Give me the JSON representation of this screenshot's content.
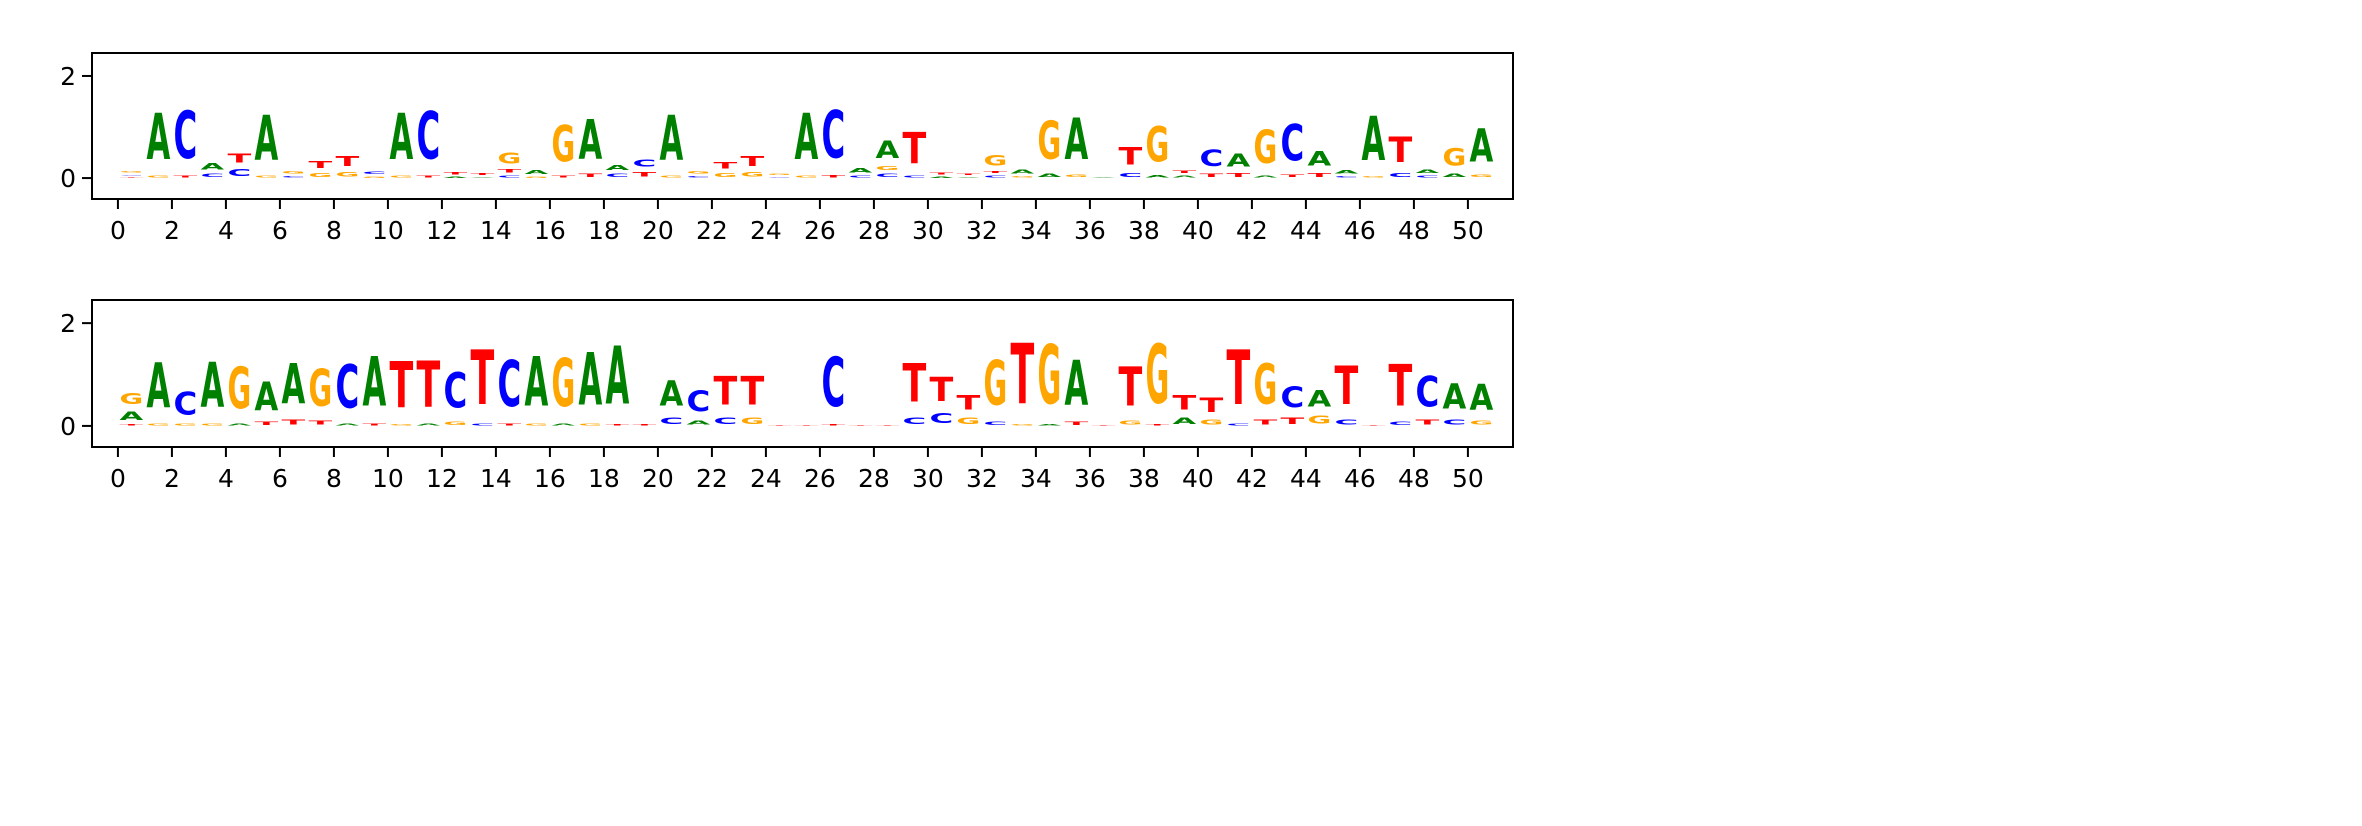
{
  "chart_data": [
    {
      "type": "sequence-logo",
      "title": "",
      "xlabel": "",
      "ylabel": "",
      "xlim": [
        -0.96,
        51.67
      ],
      "ylim": [
        -0.41,
        2.45
      ],
      "xticks": [
        0,
        2,
        4,
        6,
        8,
        10,
        12,
        14,
        16,
        18,
        20,
        22,
        24,
        26,
        28,
        30,
        32,
        34,
        36,
        38,
        40,
        42,
        44,
        46,
        48,
        50
      ],
      "xtick_labels": [
        "0",
        "2",
        "4",
        "6",
        "8",
        "10",
        "12",
        "14",
        "16",
        "18",
        "20",
        "22",
        "24",
        "26",
        "28",
        "30",
        "32",
        "34",
        "36",
        "38",
        "40",
        "42",
        "44",
        "46",
        "48",
        "50"
      ],
      "yticks": [
        0,
        2
      ],
      "ytick_labels": [
        "0",
        "2"
      ],
      "positions": [
        [
          [
            "T",
            0.01
          ],
          [
            "C",
            0.02
          ],
          [
            "G",
            0.04
          ]
        ],
        [
          [
            "G",
            0.05
          ],
          [
            "A",
            1.45
          ]
        ],
        [
          [
            "T",
            0.06
          ],
          [
            "C",
            1.5
          ]
        ],
        [
          [
            "C",
            0.1
          ],
          [
            "A",
            0.2
          ]
        ],
        [
          [
            "C",
            0.22
          ],
          [
            "T",
            0.28
          ]
        ],
        [
          [
            "G",
            0.05
          ],
          [
            "A",
            1.4
          ]
        ],
        [
          [
            "C",
            0.04
          ],
          [
            "G",
            0.08
          ]
        ],
        [
          [
            "G",
            0.12
          ],
          [
            "T",
            0.22
          ]
        ],
        [
          [
            "G",
            0.15
          ],
          [
            "T",
            0.3
          ]
        ],
        [
          [
            "G",
            0.03
          ],
          [
            "C",
            0.08
          ]
        ],
        [
          [
            "G",
            0.05
          ],
          [
            "A",
            1.45
          ]
        ],
        [
          [
            "T",
            0.05
          ],
          [
            "C",
            1.5
          ]
        ],
        [
          [
            "A",
            0.03
          ],
          [
            "T",
            0.07
          ]
        ],
        [
          [
            "A",
            0.02
          ],
          [
            "T",
            0.06
          ]
        ],
        [
          [
            "C",
            0.06
          ],
          [
            "T",
            0.1
          ],
          [
            "G",
            0.34
          ]
        ],
        [
          [
            "G",
            0.03
          ],
          [
            "A",
            0.12
          ]
        ],
        [
          [
            "T",
            0.06
          ],
          [
            "G",
            1.15
          ]
        ],
        [
          [
            "T",
            0.1
          ],
          [
            "A",
            1.25
          ]
        ],
        [
          [
            "C",
            0.1
          ],
          [
            "A",
            0.16
          ]
        ],
        [
          [
            "T",
            0.15
          ],
          [
            "C",
            0.22
          ]
        ],
        [
          [
            "G",
            0.05
          ],
          [
            "A",
            1.4
          ]
        ],
        [
          [
            "C",
            0.04
          ],
          [
            "G",
            0.08
          ]
        ],
        [
          [
            "G",
            0.12
          ],
          [
            "T",
            0.2
          ]
        ],
        [
          [
            "G",
            0.15
          ],
          [
            "T",
            0.3
          ]
        ],
        [
          [
            "C",
            0.02
          ],
          [
            "G",
            0.04
          ]
        ],
        [
          [
            "G",
            0.05
          ],
          [
            "A",
            1.45
          ]
        ],
        [
          [
            "T",
            0.07
          ],
          [
            "C",
            1.5
          ]
        ],
        [
          [
            "C",
            0.05
          ],
          [
            "A",
            0.15
          ]
        ],
        [
          [
            "C",
            0.1
          ],
          [
            "G",
            0.12
          ],
          [
            "A",
            0.55
          ]
        ],
        [
          [
            "C",
            0.06
          ],
          [
            "T",
            0.98
          ]
        ],
        [
          [
            "A",
            0.03
          ],
          [
            "T",
            0.06
          ]
        ],
        [
          [
            "A",
            0.02
          ],
          [
            "T",
            0.04
          ]
        ],
        [
          [
            "C",
            0.06
          ],
          [
            "T",
            0.06
          ],
          [
            "G",
            0.32
          ]
        ],
        [
          [
            "G",
            0.04
          ],
          [
            "A",
            0.12
          ]
        ],
        [
          [
            "A",
            0.1
          ],
          [
            "G",
            1.2
          ]
        ],
        [
          [
            "G",
            0.08
          ],
          [
            "A",
            1.3
          ]
        ],
        [
          [
            "A",
            0.02
          ]
        ],
        [
          [
            "C",
            0.12
          ],
          [
            "T",
            0.55
          ]
        ],
        [
          [
            "A",
            0.07
          ],
          [
            "G",
            1.1
          ]
        ],
        [
          [
            "A",
            0.05
          ],
          [
            "T",
            0.08
          ]
        ],
        [
          [
            "T",
            0.1
          ],
          [
            "C",
            0.5
          ]
        ],
        [
          [
            "T",
            0.12
          ],
          [
            "A",
            0.4
          ]
        ],
        [
          [
            "A",
            0.05
          ],
          [
            "G",
            1.05
          ]
        ],
        [
          [
            "T",
            0.08
          ],
          [
            "C",
            1.15
          ]
        ],
        [
          [
            "T",
            0.12
          ],
          [
            "A",
            0.45
          ]
        ],
        [
          [
            "C",
            0.04
          ],
          [
            "A",
            0.1
          ]
        ],
        [
          [
            "G",
            0.04
          ],
          [
            "A",
            1.38
          ]
        ],
        [
          [
            "C",
            0.12
          ],
          [
            "T",
            0.8
          ]
        ],
        [
          [
            "C",
            0.05
          ],
          [
            "A",
            0.1
          ]
        ],
        [
          [
            "A",
            0.1
          ],
          [
            "G",
            0.55
          ]
        ],
        [
          [
            "G",
            0.08
          ],
          [
            "A",
            1.05
          ]
        ]
      ]
    },
    {
      "type": "sequence-logo",
      "title": "",
      "xlabel": "",
      "ylabel": "",
      "xlim": [
        -0.96,
        51.67
      ],
      "ylim": [
        -0.41,
        2.45
      ],
      "xticks": [
        0,
        2,
        4,
        6,
        8,
        10,
        12,
        14,
        16,
        18,
        20,
        22,
        24,
        26,
        28,
        30,
        32,
        34,
        36,
        38,
        40,
        42,
        44,
        46,
        48,
        50
      ],
      "xtick_labels": [
        "0",
        "2",
        "4",
        "6",
        "8",
        "10",
        "12",
        "14",
        "16",
        "18",
        "20",
        "22",
        "24",
        "26",
        "28",
        "30",
        "32",
        "34",
        "36",
        "38",
        "40",
        "42",
        "44",
        "46",
        "48",
        "50"
      ],
      "yticks": [
        0,
        2
      ],
      "ytick_labels": [
        "0",
        "2"
      ],
      "positions": [
        [
          [
            "T",
            0.03
          ],
          [
            "A",
            0.27
          ],
          [
            "G",
            0.35
          ]
        ],
        [
          [
            "G",
            0.05
          ],
          [
            "A",
            1.4
          ]
        ],
        [
          [
            "G",
            0.05
          ],
          [
            "C",
            0.7
          ]
        ],
        [
          [
            "G",
            0.06
          ],
          [
            "A",
            1.4
          ]
        ],
        [
          [
            "A",
            0.05
          ],
          [
            "G",
            1.3
          ]
        ],
        [
          [
            "T",
            0.1
          ],
          [
            "A",
            0.9
          ]
        ],
        [
          [
            "T",
            0.15
          ],
          [
            "A",
            1.25
          ]
        ],
        [
          [
            "T",
            0.12
          ],
          [
            "G",
            1.15
          ]
        ],
        [
          [
            "A",
            0.05
          ],
          [
            "C",
            1.35
          ]
        ],
        [
          [
            "T",
            0.05
          ],
          [
            "A",
            1.55
          ]
        ],
        [
          [
            "G",
            0.04
          ],
          [
            "T",
            1.45
          ]
        ],
        [
          [
            "A",
            0.05
          ],
          [
            "T",
            1.45
          ]
        ],
        [
          [
            "G",
            0.1
          ],
          [
            "C",
            1.1
          ]
        ],
        [
          [
            "C",
            0.05
          ],
          [
            "T",
            1.7
          ]
        ],
        [
          [
            "T",
            0.06
          ],
          [
            "C",
            1.45
          ]
        ],
        [
          [
            "G",
            0.05
          ],
          [
            "A",
            1.55
          ]
        ],
        [
          [
            "A",
            0.05
          ],
          [
            "G",
            1.5
          ]
        ],
        [
          [
            "G",
            0.05
          ],
          [
            "A",
            1.65
          ]
        ],
        [
          [
            "T",
            0.04
          ],
          [
            "A",
            1.8
          ]
        ],
        [
          [
            "T",
            0.03
          ]
        ],
        [
          [
            "C",
            0.2
          ],
          [
            "A",
            0.8
          ]
        ],
        [
          [
            "A",
            0.12
          ],
          [
            "C",
            0.65
          ]
        ],
        [
          [
            "C",
            0.2
          ],
          [
            "T",
            0.9
          ]
        ],
        [
          [
            "G",
            0.2
          ],
          [
            "T",
            0.9
          ]
        ],
        [
          [
            "T",
            0.02
          ]
        ],
        [
          [
            "T",
            0.02
          ]
        ],
        [
          [
            "T",
            0.04
          ],
          [
            "C",
            1.55
          ]
        ],
        [
          [
            "T",
            0.02
          ]
        ],
        [
          [
            "T",
            0.02
          ]
        ],
        [
          [
            "C",
            0.2
          ],
          [
            "T",
            1.2
          ]
        ],
        [
          [
            "C",
            0.3
          ],
          [
            "T",
            0.75
          ]
        ],
        [
          [
            "G",
            0.2
          ],
          [
            "T",
            0.45
          ]
        ],
        [
          [
            "C",
            0.1
          ],
          [
            "G",
            1.4
          ]
        ],
        [
          [
            "G",
            0.03
          ],
          [
            "T",
            1.88
          ]
        ],
        [
          [
            "A",
            0.03
          ],
          [
            "G",
            1.85
          ]
        ],
        [
          [
            "T",
            0.1
          ],
          [
            "A",
            1.4
          ]
        ],
        [
          [
            "T",
            0.02
          ]
        ],
        [
          [
            "G",
            0.12
          ],
          [
            "T",
            1.22
          ]
        ],
        [
          [
            "T",
            0.04
          ],
          [
            "G",
            1.85
          ]
        ],
        [
          [
            "A",
            0.2
          ],
          [
            "T",
            0.45
          ]
        ],
        [
          [
            "G",
            0.15
          ],
          [
            "T",
            0.45
          ]
        ],
        [
          [
            "C",
            0.05
          ],
          [
            "T",
            1.7
          ]
        ],
        [
          [
            "T",
            0.15
          ],
          [
            "G",
            1.25
          ]
        ],
        [
          [
            "T",
            0.2
          ],
          [
            "C",
            0.65
          ]
        ],
        [
          [
            "G",
            0.25
          ],
          [
            "A",
            0.5
          ]
        ],
        [
          [
            "C",
            0.15
          ],
          [
            "T",
            1.2
          ]
        ],
        [
          [
            "T",
            0.02
          ]
        ],
        [
          [
            "C",
            0.1
          ],
          [
            "T",
            1.3
          ]
        ],
        [
          [
            "T",
            0.15
          ],
          [
            "C",
            0.95
          ]
        ],
        [
          [
            "C",
            0.15
          ],
          [
            "A",
            0.8
          ]
        ],
        [
          [
            "G",
            0.12
          ],
          [
            "A",
            0.82
          ]
        ]
      ]
    }
  ],
  "colors": {
    "A": "#008000",
    "C": "#0000ff",
    "G": "#ffa500",
    "T": "#ff0000"
  }
}
